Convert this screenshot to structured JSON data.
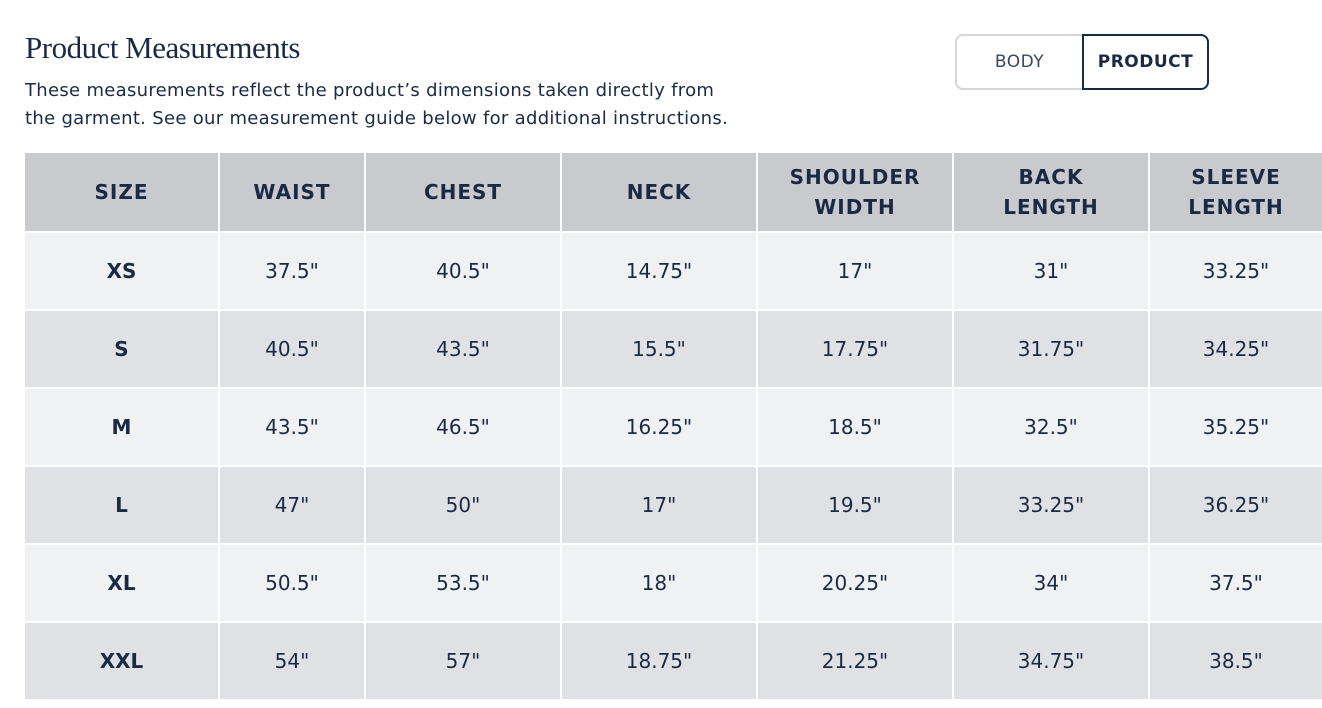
{
  "header": {
    "title": "Product Measurements",
    "description": [
      "These measurements reflect the product’s dimensions taken directly from",
      "the garment. See our measurement guide below for additional instructions."
    ]
  },
  "toggle": {
    "options": [
      "BODY",
      "PRODUCT"
    ],
    "selected": 1
  },
  "table": {
    "headers": [
      [
        "SIZE"
      ],
      [
        "WAIST"
      ],
      [
        "CHEST"
      ],
      [
        "NECK"
      ],
      [
        "SHOULDER",
        "WIDTH"
      ],
      [
        "BACK",
        "LENGTH"
      ],
      [
        "SLEEVE",
        "LENGTH"
      ]
    ],
    "rows": [
      [
        "XS",
        "37.5\"",
        "40.5\"",
        "14.75\"",
        "17\"",
        "31\"",
        "33.25\""
      ],
      [
        "S",
        "40.5\"",
        "43.5\"",
        "15.5\"",
        "17.75\"",
        "31.75\"",
        "34.25\""
      ],
      [
        "M",
        "43.5\"",
        "46.5\"",
        "16.25\"",
        "18.5\"",
        "32.5\"",
        "35.25\""
      ],
      [
        "L",
        "47\"",
        "50\"",
        "17\"",
        "19.5\"",
        "33.25\"",
        "36.25\""
      ],
      [
        "XL",
        "50.5\"",
        "53.5\"",
        "18\"",
        "20.25\"",
        "34\"",
        "37.5\""
      ],
      [
        "XXL",
        "54\"",
        "57\"",
        "18.75\"",
        "21.25\"",
        "34.75\"",
        "38.5\""
      ]
    ]
  }
}
